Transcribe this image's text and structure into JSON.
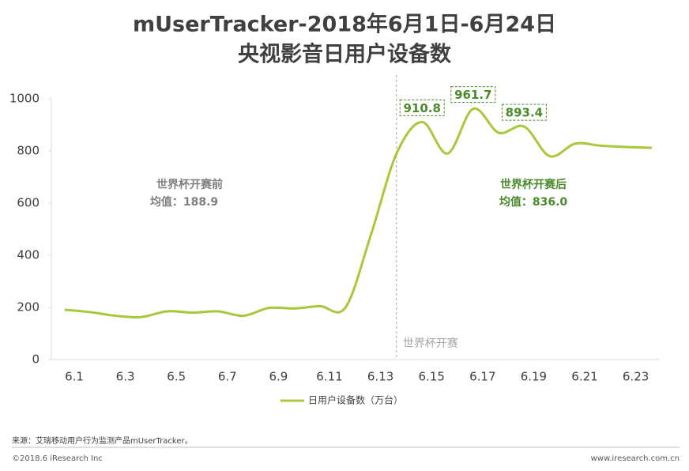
{
  "chart_data": {
    "type": "line",
    "title": "mUserTracker-2018年6月1日-6月24日",
    "subtitle": "央视影音日用户设备数",
    "categories": [
      "6.1",
      null,
      "6.3",
      null,
      "6.5",
      null,
      "6.7",
      null,
      "6.9",
      null,
      "6.11",
      null,
      "6.13",
      null,
      "6.15",
      null,
      "6.17",
      null,
      "6.19",
      null,
      "6.21",
      null,
      "6.23",
      null
    ],
    "series": [
      {
        "name": "日用户设备数（万台）",
        "color": "#a8c83c",
        "values": [
          191,
          182,
          168,
          163,
          185,
          180,
          185,
          168,
          198,
          196,
          205,
          200,
          480,
          790,
          910.8,
          790,
          961.7,
          870,
          893.4,
          780,
          828,
          820,
          815,
          812
        ],
        "value_labels": [
          null,
          null,
          null,
          null,
          null,
          null,
          null,
          null,
          null,
          null,
          null,
          null,
          null,
          null,
          "910.8",
          null,
          "961.7",
          null,
          "893.4",
          null,
          null,
          null,
          null,
          null
        ]
      }
    ],
    "ylim": [
      0,
      1000
    ],
    "yticks": [
      0,
      200,
      400,
      600,
      800,
      1000
    ],
    "annotations": [
      "世界杯开赛前",
      "均值：188.9",
      "世界杯开赛后",
      "均值：836.0",
      "世界杯开赛"
    ],
    "source": "来源：艾瑞移动用户行为监测产品mUserTracker。",
    "copyright": "©2018.6 iResearch Inc",
    "website": "www.iresearch.com.cn"
  }
}
